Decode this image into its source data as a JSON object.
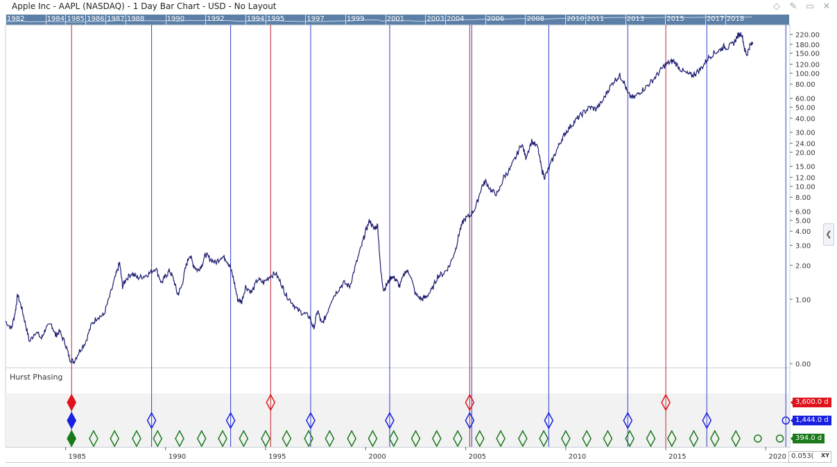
{
  "window": {
    "title": "Apple Inc - AAPL (NASDAQ) - 1 Day Bar Chart - USD - No Layout"
  },
  "overview": {
    "year_labels": [
      "1982",
      "1984",
      "1985",
      "1986",
      "1987",
      "1988",
      "1990",
      "1992",
      "1994",
      "1995",
      "1997",
      "1999",
      "2001",
      "2003",
      "2004",
      "2006",
      "2008",
      "2010",
      "2011",
      "2013",
      "2015",
      "2017",
      "2018"
    ]
  },
  "chart_data": {
    "type": "line",
    "y_scale": "log",
    "x_range": [
      1982.0,
      2021.2
    ],
    "y_ticks": [
      "220.00",
      "180.00",
      "150.00",
      "120.00",
      "100.00",
      "80.00",
      "60.00",
      "50.00",
      "40.00",
      "30.00",
      "24.00",
      "20.00",
      "15.00",
      "12.00",
      "10.00",
      "8.00",
      "6.00",
      "5.00",
      "4.00",
      "3.00",
      "2.00",
      "1.00",
      "0.00"
    ],
    "x_ticks": [
      "1985",
      "1990",
      "1995",
      "2000",
      "2005",
      "2010",
      "2015",
      "2020"
    ],
    "series": [
      {
        "color": "#1a1a6e",
        "points": [
          [
            1982.0,
            0.64
          ],
          [
            1982.3,
            0.55
          ],
          [
            1982.5,
            0.8
          ],
          [
            1982.6,
            1.1
          ],
          [
            1982.8,
            0.85
          ],
          [
            1983.0,
            0.6
          ],
          [
            1983.2,
            0.42
          ],
          [
            1983.5,
            0.52
          ],
          [
            1983.8,
            0.45
          ],
          [
            1984.0,
            0.55
          ],
          [
            1984.3,
            0.6
          ],
          [
            1984.5,
            0.48
          ],
          [
            1984.7,
            0.52
          ],
          [
            1985.0,
            0.4
          ],
          [
            1985.2,
            0.3
          ],
          [
            1985.4,
            0.28
          ],
          [
            1985.7,
            0.35
          ],
          [
            1986.0,
            0.42
          ],
          [
            1986.3,
            0.6
          ],
          [
            1986.6,
            0.7
          ],
          [
            1986.9,
            0.72
          ],
          [
            1987.2,
            1.05
          ],
          [
            1987.5,
            1.6
          ],
          [
            1987.7,
            2.1
          ],
          [
            1987.85,
            1.3
          ],
          [
            1988.0,
            1.5
          ],
          [
            1988.3,
            1.7
          ],
          [
            1988.6,
            1.55
          ],
          [
            1988.9,
            1.6
          ],
          [
            1989.2,
            1.7
          ],
          [
            1989.5,
            1.9
          ],
          [
            1989.8,
            1.4
          ],
          [
            1990.0,
            1.6
          ],
          [
            1990.2,
            1.8
          ],
          [
            1990.4,
            1.5
          ],
          [
            1990.6,
            1.1
          ],
          [
            1990.8,
            1.3
          ],
          [
            1991.0,
            1.9
          ],
          [
            1991.2,
            2.5
          ],
          [
            1991.4,
            2.0
          ],
          [
            1991.6,
            1.8
          ],
          [
            1991.8,
            2.0
          ],
          [
            1992.0,
            2.5
          ],
          [
            1992.2,
            2.3
          ],
          [
            1992.5,
            2.1
          ],
          [
            1992.8,
            2.4
          ],
          [
            1993.0,
            2.3
          ],
          [
            1993.2,
            2.0
          ],
          [
            1993.4,
            1.5
          ],
          [
            1993.6,
            1.0
          ],
          [
            1993.8,
            0.95
          ],
          [
            1994.0,
            1.3
          ],
          [
            1994.3,
            1.15
          ],
          [
            1994.6,
            1.5
          ],
          [
            1994.9,
            1.4
          ],
          [
            1995.2,
            1.6
          ],
          [
            1995.5,
            1.7
          ],
          [
            1995.8,
            1.35
          ],
          [
            1996.0,
            1.1
          ],
          [
            1996.3,
            0.95
          ],
          [
            1996.6,
            0.8
          ],
          [
            1996.9,
            0.75
          ],
          [
            1997.2,
            0.7
          ],
          [
            1997.4,
            0.55
          ],
          [
            1997.6,
            0.8
          ],
          [
            1997.8,
            0.6
          ],
          [
            1998.0,
            0.7
          ],
          [
            1998.3,
            1.0
          ],
          [
            1998.6,
            1.2
          ],
          [
            1998.9,
            1.4
          ],
          [
            1999.2,
            1.3
          ],
          [
            1999.5,
            2.0
          ],
          [
            1999.8,
            3.0
          ],
          [
            2000.0,
            4.0
          ],
          [
            2000.2,
            5.0
          ],
          [
            2000.4,
            4.2
          ],
          [
            2000.6,
            4.5
          ],
          [
            2000.75,
            1.8
          ],
          [
            2000.9,
            1.2
          ],
          [
            2001.1,
            1.4
          ],
          [
            2001.3,
            1.6
          ],
          [
            2001.5,
            1.5
          ],
          [
            2001.7,
            1.3
          ],
          [
            2002.0,
            1.8
          ],
          [
            2002.2,
            1.7
          ],
          [
            2002.5,
            1.1
          ],
          [
            2002.8,
            1.0
          ],
          [
            2003.0,
            1.05
          ],
          [
            2003.3,
            1.2
          ],
          [
            2003.6,
            1.6
          ],
          [
            2003.9,
            1.7
          ],
          [
            2004.2,
            2.0
          ],
          [
            2004.5,
            2.8
          ],
          [
            2004.7,
            4.0
          ],
          [
            2004.9,
            5.0
          ],
          [
            2005.2,
            5.5
          ],
          [
            2005.5,
            6.5
          ],
          [
            2005.8,
            10.0
          ],
          [
            2006.0,
            11.0
          ],
          [
            2006.3,
            9.0
          ],
          [
            2006.6,
            8.5
          ],
          [
            2006.9,
            12.0
          ],
          [
            2007.2,
            14.0
          ],
          [
            2007.5,
            18.0
          ],
          [
            2007.8,
            24.0
          ],
          [
            2008.0,
            18.0
          ],
          [
            2008.3,
            25.0
          ],
          [
            2008.6,
            22.0
          ],
          [
            2008.8,
            14.0
          ],
          [
            2008.95,
            12.0
          ],
          [
            2009.2,
            15.0
          ],
          [
            2009.5,
            20.0
          ],
          [
            2009.8,
            26.0
          ],
          [
            2010.0,
            30.0
          ],
          [
            2010.3,
            35.0
          ],
          [
            2010.6,
            40.0
          ],
          [
            2010.9,
            45.0
          ],
          [
            2011.2,
            50.0
          ],
          [
            2011.5,
            48.0
          ],
          [
            2011.8,
            55.0
          ],
          [
            2012.1,
            70.0
          ],
          [
            2012.4,
            85.0
          ],
          [
            2012.7,
            95.0
          ],
          [
            2012.9,
            85.0
          ],
          [
            2013.1,
            65.0
          ],
          [
            2013.4,
            60.0
          ],
          [
            2013.7,
            68.0
          ],
          [
            2014.0,
            75.0
          ],
          [
            2014.3,
            85.0
          ],
          [
            2014.6,
            98.0
          ],
          [
            2014.9,
            115.0
          ],
          [
            2015.2,
            125.0
          ],
          [
            2015.4,
            128.0
          ],
          [
            2015.7,
            110.0
          ],
          [
            2016.0,
            100.0
          ],
          [
            2016.3,
            95.0
          ],
          [
            2016.5,
            100.0
          ],
          [
            2016.8,
            112.0
          ],
          [
            2017.1,
            135.0
          ],
          [
            2017.4,
            150.0
          ],
          [
            2017.7,
            160.0
          ],
          [
            2017.9,
            172.0
          ],
          [
            2018.1,
            168.0
          ],
          [
            2018.4,
            185.0
          ],
          [
            2018.6,
            215.0
          ],
          [
            2018.8,
            225.0
          ],
          [
            2018.95,
            160.0
          ],
          [
            2019.05,
            145.0
          ],
          [
            2019.2,
            175.0
          ],
          [
            2019.35,
            182.0
          ]
        ]
      }
    ],
    "cycle_lines": [
      {
        "x": 1985.3,
        "color": "#c0262b"
      },
      {
        "x": 1989.3,
        "color": "#2b3ec9"
      },
      {
        "x": 1993.25,
        "color": "#2b3ec9"
      },
      {
        "x": 1995.25,
        "color": "#c0262b"
      },
      {
        "x": 1997.25,
        "color": "#2b3ec9"
      },
      {
        "x": 2001.2,
        "color": "#2b3ec9"
      },
      {
        "x": 2005.2,
        "color": "#c0262b"
      },
      {
        "x": 2005.3,
        "color": "#2b3ec9"
      },
      {
        "x": 2009.15,
        "color": "#2b3ec9"
      },
      {
        "x": 2013.1,
        "color": "#2b3ec9"
      },
      {
        "x": 2015.0,
        "color": "#c0262b"
      },
      {
        "x": 2017.05,
        "color": "#2b3ec9"
      },
      {
        "x": 2021.0,
        "color": "#2b3ec9"
      }
    ],
    "hurst": {
      "label": "Hurst Phasing",
      "rows": [
        {
          "period": "3,600.0 d",
          "color": "#e0141c",
          "markers": [
            1985.3,
            1995.25,
            2005.2,
            2015.0
          ],
          "projected": []
        },
        {
          "period": "1,444.0 d",
          "color": "#1a1fe0",
          "markers": [
            1985.3,
            1989.3,
            1993.25,
            1997.25,
            2001.2,
            2005.2,
            2009.15,
            2013.1,
            2017.05
          ],
          "projected": [
            2021.0
          ]
        },
        {
          "period": "394.0 d",
          "color": "#1a7a1a",
          "markers": [
            1985.3,
            1986.4,
            1987.45,
            1988.55,
            1989.6,
            1990.7,
            1991.8,
            1992.85,
            1993.9,
            1995.0,
            1996.05,
            1997.15,
            1998.2,
            1999.3,
            2000.35,
            2001.4,
            2002.5,
            2003.55,
            2004.6,
            2005.7,
            2006.75,
            2007.85,
            2008.9,
            2010.0,
            2011.05,
            2012.1,
            2013.2,
            2014.25,
            2015.3,
            2016.4,
            2017.45,
            2018.5
          ],
          "projected": [
            2019.6,
            2020.7,
            2021.75
          ]
        }
      ]
    }
  },
  "xy_box": {
    "value": "0.053(",
    "mode": "XY"
  }
}
